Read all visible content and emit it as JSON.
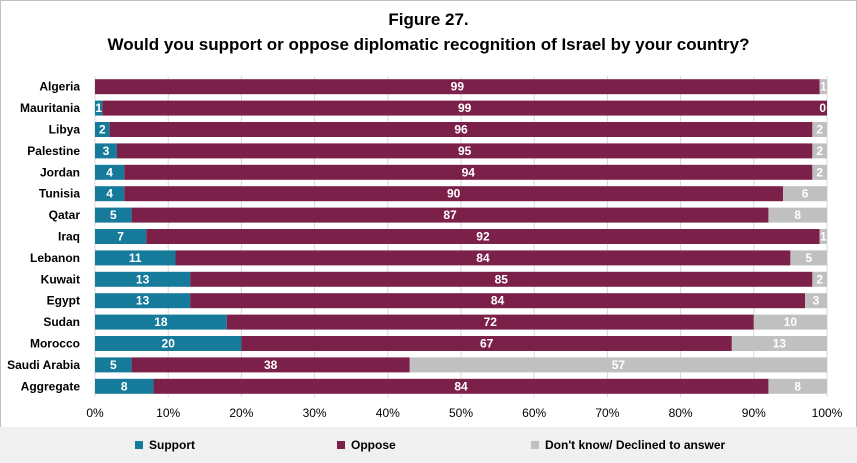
{
  "figure_label": "Figure 27.",
  "colors": {
    "support": "#167b9b",
    "oppose": "#7b2149",
    "dont_know": "#c0c0c0",
    "grid": "#d9d9d9",
    "legend_bg": "#f0f0f0"
  },
  "legend": {
    "support": "Support",
    "oppose": "Oppose",
    "dont_know": "Don't know/ Declined to answer"
  },
  "chart_data": {
    "type": "bar",
    "orientation": "horizontal",
    "stacked": true,
    "title": "Would you support or oppose diplomatic recognition of Israel by your country?",
    "xlabel": "",
    "ylabel": "",
    "xlim": [
      0,
      100
    ],
    "x_ticks": [
      "0%",
      "10%",
      "20%",
      "30%",
      "40%",
      "50%",
      "60%",
      "70%",
      "80%",
      "90%",
      "100%"
    ],
    "legend_position": "bottom",
    "categories": [
      "Algeria",
      "Mauritania",
      "Libya",
      "Palestine",
      "Jordan",
      "Tunisia",
      "Qatar",
      "Iraq",
      "Lebanon",
      "Kuwait",
      "Egypt",
      "Sudan",
      "Morocco",
      "Saudi Arabia",
      "Aggregate"
    ],
    "series": [
      {
        "name": "Support",
        "values": [
          0,
          1,
          2,
          3,
          4,
          4,
          5,
          7,
          11,
          13,
          13,
          18,
          20,
          5,
          8
        ]
      },
      {
        "name": "Oppose",
        "values": [
          99,
          99,
          96,
          95,
          94,
          90,
          87,
          92,
          84,
          85,
          84,
          72,
          67,
          38,
          84
        ]
      },
      {
        "name": "Don't know/ Declined to answer",
        "values": [
          1,
          0,
          2,
          2,
          2,
          6,
          8,
          1,
          5,
          2,
          3,
          10,
          13,
          57,
          8
        ]
      }
    ]
  }
}
